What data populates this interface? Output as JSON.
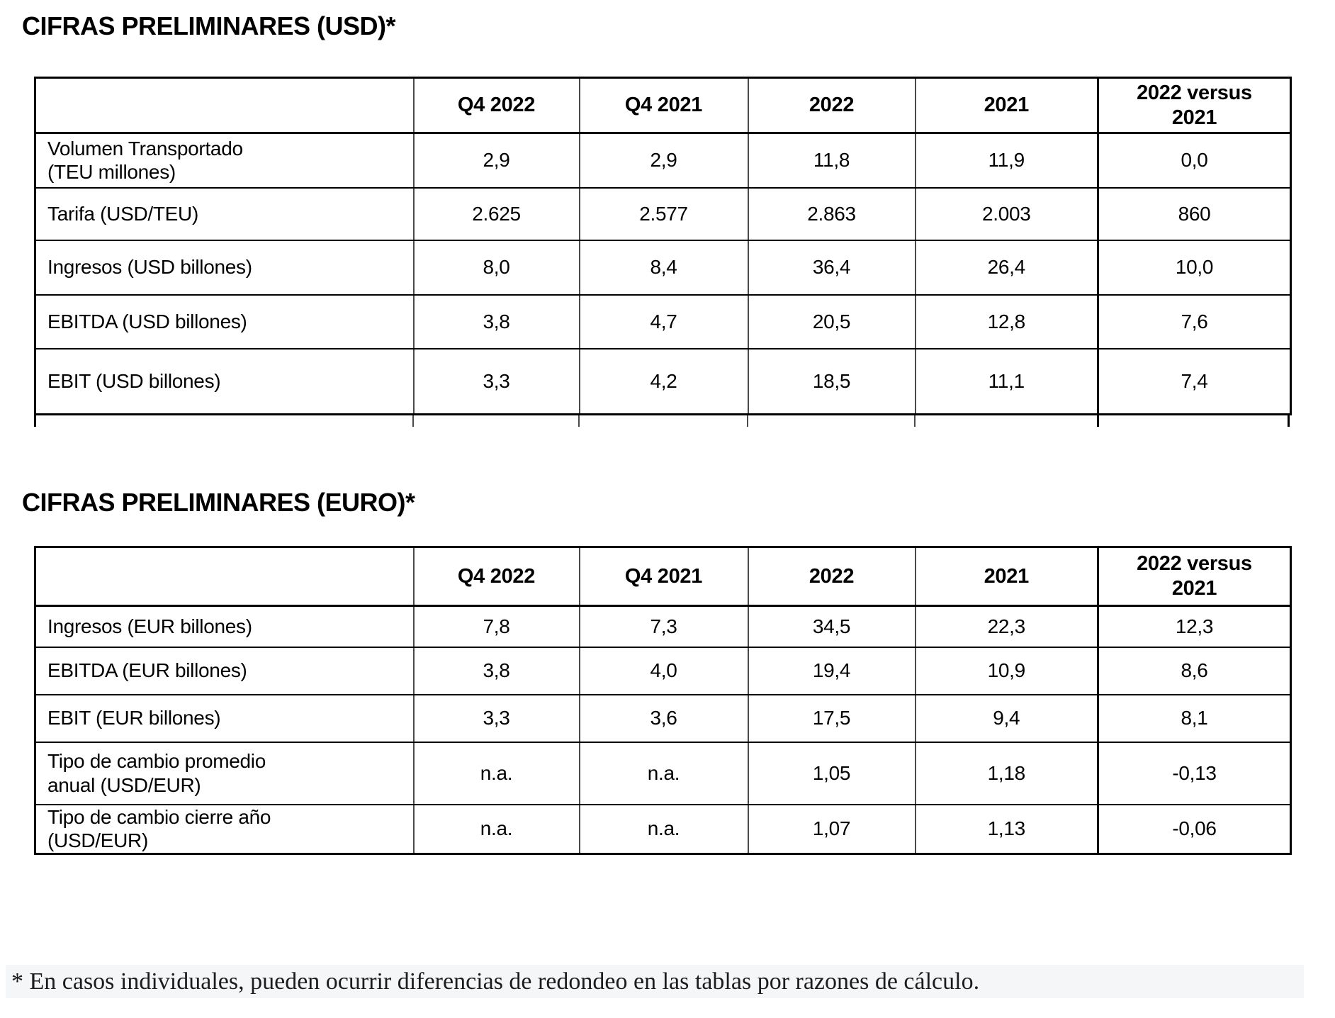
{
  "colors": {
    "background": "#ffffff",
    "table_border": "#000000",
    "inner_vertical_line": "#4a4a4a",
    "footnote_background": "#f5f6f8",
    "text": "#000000"
  },
  "tables": [
    {
      "title": "CIFRAS PRELIMINARES (USD)*",
      "columns": [
        "",
        "Q4 2022",
        "Q4 2021",
        "2022",
        "2021",
        "2022 versus\n2021"
      ],
      "rows": [
        {
          "label": "Volumen Transportado\n(TEU millones)",
          "values": [
            "2,9",
            "2,9",
            "11,8",
            "11,9",
            "0,0"
          ]
        },
        {
          "label": "Tarifa (USD/TEU)",
          "values": [
            "2.625",
            "2.577",
            "2.863",
            "2.003",
            "860"
          ]
        },
        {
          "label": "Ingresos (USD billones)",
          "values": [
            "8,0",
            "8,4",
            "36,4",
            "26,4",
            "10,0"
          ]
        },
        {
          "label": "EBITDA (USD billones)",
          "values": [
            "3,8",
            "4,7",
            "20,5",
            "12,8",
            "7,6"
          ]
        },
        {
          "label": "EBIT (USD billones)",
          "values": [
            "3,3",
            "4,2",
            "18,5",
            "11,1",
            "7,4"
          ]
        }
      ],
      "truncated_bottom": true
    },
    {
      "title": "CIFRAS PRELIMINARES (EURO)*",
      "columns": [
        "",
        "Q4 2022",
        "Q4 2021",
        "2022",
        "2021",
        "2022 versus\n2021"
      ],
      "rows": [
        {
          "label": "Ingresos (EUR billones)",
          "values": [
            "7,8",
            "7,3",
            "34,5",
            "22,3",
            "12,3"
          ]
        },
        {
          "label": "EBITDA (EUR billones)",
          "values": [
            "3,8",
            "4,0",
            "19,4",
            "10,9",
            "8,6"
          ]
        },
        {
          "label": "EBIT (EUR billones)",
          "values": [
            "3,3",
            "3,6",
            "17,5",
            "9,4",
            "8,1"
          ]
        },
        {
          "label": "Tipo de cambio promedio\nanual (USD/EUR)",
          "values": [
            "n.a.",
            "n.a.",
            "1,05",
            "1,18",
            "-0,13"
          ]
        },
        {
          "label": "Tipo de cambio cierre año\n(USD/EUR)",
          "values": [
            "n.a.",
            "n.a.",
            "1,07",
            "1,13",
            "-0,06"
          ]
        }
      ],
      "truncated_bottom": false
    }
  ],
  "footnote": {
    "text": "* En casos individuales, pueden ocurrir diferencias de redondeo en las tablas por razones de cálculo."
  }
}
